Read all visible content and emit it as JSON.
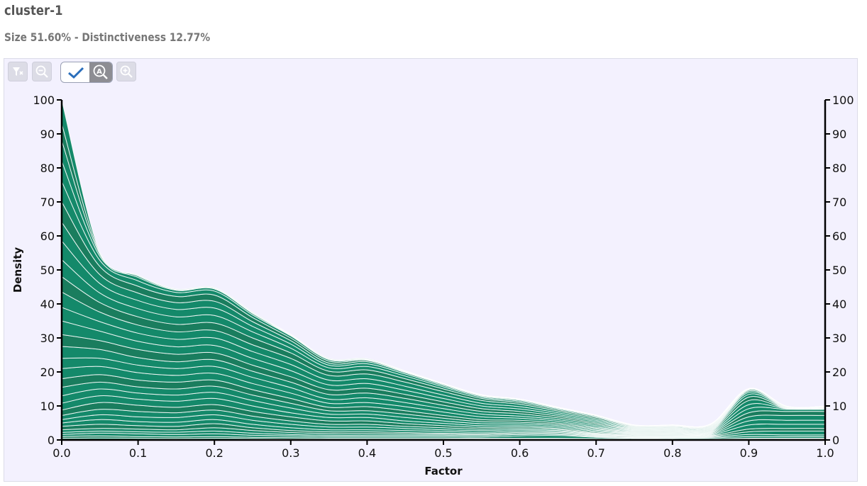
{
  "header": {
    "title": "cluster-1",
    "subtitle": "Size 51.60% - Distinctiveness 12.77%"
  },
  "toolbar": {
    "buttons": [
      {
        "icon": "filter-reset-icon",
        "enabled": false
      },
      {
        "icon": "zoom-out-icon",
        "enabled": false
      },
      {
        "icon": "auto-zoom-toggle-icon",
        "checked": true
      },
      {
        "icon": "zoom-in-icon",
        "enabled": false
      }
    ]
  },
  "colors": {
    "fill": "#14896a",
    "fill_dark": "#1a7d5e",
    "stroke": "#ffffff",
    "panel_bg": "#f3f1fe"
  },
  "chart_data": {
    "type": "area",
    "subtype": "stacked-density",
    "xlabel": "Factor",
    "ylabel": "Density",
    "xlim": [
      0,
      1
    ],
    "ylim": [
      0,
      100
    ],
    "x_ticks": [
      "0.0",
      "0.1",
      "0.2",
      "0.3",
      "0.4",
      "0.5",
      "0.6",
      "0.7",
      "0.8",
      "0.9",
      "1.0"
    ],
    "y_ticks": [
      "0",
      "10",
      "20",
      "30",
      "40",
      "50",
      "60",
      "70",
      "80",
      "90",
      "100"
    ],
    "y_right_ticks": [
      "0",
      "10",
      "20",
      "30",
      "40",
      "50",
      "60",
      "70",
      "80",
      "90",
      "100"
    ],
    "x": [
      0,
      0.05,
      0.1,
      0.15,
      0.2,
      0.25,
      0.3,
      0.35,
      0.4,
      0.45,
      0.5,
      0.55,
      0.6,
      0.65,
      0.7,
      0.75,
      0.8,
      0.85,
      0.9,
      0.95,
      1.0
    ],
    "boundaries": [
      [
        0,
        0,
        0,
        0,
        0,
        0,
        0,
        0,
        0,
        0,
        0,
        0,
        0,
        0,
        0,
        0,
        0,
        0,
        0,
        0,
        0
      ],
      [
        0.5,
        0.6,
        0.5,
        0.4,
        0.5,
        0.4,
        0.3,
        0.3,
        0.3,
        0.3,
        0.3,
        0.3,
        0.3,
        0.3,
        0.2,
        0.2,
        0.2,
        0.2,
        0.3,
        0.3,
        0.3
      ],
      [
        1.0,
        1.2,
        1.0,
        0.9,
        1.0,
        0.8,
        0.7,
        0.6,
        0.6,
        0.6,
        0.6,
        0.5,
        0.5,
        0.5,
        0.4,
        0.3,
        0.3,
        0.3,
        0.5,
        0.5,
        0.5
      ],
      [
        1.6,
        2.0,
        1.8,
        1.6,
        1.8,
        1.4,
        1.2,
        1.0,
        1.0,
        1.0,
        1.0,
        0.9,
        1.2,
        1.3,
        0.8,
        0.5,
        0.5,
        0.6,
        1.0,
        1.0,
        1.0
      ],
      [
        2.2,
        2.6,
        2.4,
        2.3,
        2.6,
        2.0,
        1.6,
        1.4,
        1.4,
        1.4,
        1.4,
        1.3,
        1.6,
        1.6,
        1.0,
        0.7,
        0.7,
        0.8,
        1.6,
        1.5,
        1.5
      ],
      [
        3.0,
        3.4,
        3.2,
        3.0,
        3.6,
        2.8,
        2.2,
        1.9,
        1.9,
        1.8,
        1.7,
        1.6,
        1.9,
        1.9,
        1.2,
        0.8,
        0.9,
        1.0,
        2.4,
        2.6,
        2.6
      ],
      [
        4.0,
        4.6,
        4.2,
        4.0,
        4.8,
        3.6,
        2.8,
        2.4,
        2.4,
        2.2,
        2.0,
        1.9,
        2.2,
        2.2,
        1.4,
        1.0,
        1.0,
        1.2,
        3.2,
        3.4,
        3.4
      ],
      [
        5.0,
        6.0,
        5.4,
        5.2,
        6.0,
        4.6,
        3.6,
        3.0,
        3.0,
        2.8,
        2.5,
        2.3,
        2.6,
        2.5,
        1.6,
        1.1,
        1.1,
        1.4,
        4.4,
        4.6,
        4.6
      ],
      [
        6.0,
        7.4,
        6.8,
        6.6,
        7.4,
        5.8,
        4.6,
        3.8,
        3.8,
        3.4,
        3.0,
        2.8,
        3.0,
        2.8,
        1.8,
        1.3,
        1.3,
        1.6,
        5.6,
        5.8,
        5.8
      ],
      [
        7.2,
        9.0,
        8.4,
        8.0,
        8.8,
        7.0,
        5.6,
        4.6,
        4.6,
        4.0,
        3.6,
        3.2,
        3.4,
        3.1,
        2.0,
        1.5,
        1.5,
        1.8,
        6.8,
        7.2,
        7.2
      ],
      [
        8.8,
        11.0,
        10.2,
        9.6,
        10.4,
        8.4,
        6.8,
        5.6,
        5.6,
        4.8,
        4.2,
        3.7,
        3.8,
        3.4,
        2.3,
        1.7,
        1.7,
        2.0,
        8.0,
        8.4,
        8.4
      ],
      [
        10.8,
        13.0,
        12.0,
        11.4,
        12.2,
        10.0,
        8.0,
        6.6,
        6.6,
        5.6,
        4.9,
        4.2,
        4.2,
        3.8,
        2.6,
        1.9,
        1.9,
        2.2,
        9.2,
        9.0,
        9.0
      ],
      [
        13.0,
        15.0,
        13.8,
        13.2,
        14.0,
        11.6,
        9.4,
        7.6,
        7.6,
        6.6,
        5.6,
        4.8,
        4.7,
        4.2,
        2.9,
        2.1,
        2.1,
        2.4,
        10.4,
        9.2,
        9.2
      ],
      [
        15.5,
        17.0,
        15.6,
        15.0,
        15.8,
        13.2,
        10.8,
        8.6,
        8.6,
        7.6,
        6.4,
        5.4,
        5.2,
        4.6,
        3.2,
        2.3,
        2.3,
        2.6,
        11.6,
        9.3,
        9.3
      ],
      [
        18.0,
        19.2,
        17.6,
        17.0,
        17.6,
        14.8,
        12.2,
        9.6,
        9.8,
        8.6,
        7.2,
        6.0,
        5.8,
        5.0,
        3.5,
        2.5,
        2.5,
        2.8,
        12.6,
        9.4,
        9.4
      ],
      [
        21.0,
        21.6,
        19.8,
        19.0,
        19.6,
        16.6,
        13.8,
        10.8,
        11.0,
        9.8,
        8.2,
        6.8,
        6.4,
        5.5,
        3.8,
        2.7,
        2.7,
        3.0,
        13.4,
        9.5,
        9.5
      ],
      [
        24.0,
        24.0,
        22.0,
        21.0,
        21.6,
        18.4,
        15.4,
        12.0,
        12.4,
        11.0,
        9.2,
        7.6,
        7.0,
        6.0,
        4.2,
        2.9,
        2.9,
        3.2,
        14.0,
        9.6,
        9.6
      ],
      [
        27.5,
        26.6,
        24.2,
        23.0,
        23.6,
        20.2,
        17.0,
        13.4,
        13.8,
        12.2,
        10.2,
        8.4,
        7.7,
        6.5,
        4.6,
        3.1,
        3.1,
        3.4,
        14.4,
        9.7,
        9.7
      ],
      [
        31.0,
        29.2,
        26.6,
        25.2,
        25.6,
        22.0,
        18.6,
        14.8,
        15.2,
        13.4,
        11.2,
        9.2,
        8.4,
        7.0,
        5.0,
        3.3,
        3.3,
        3.6,
        14.7,
        9.8,
        9.8
      ],
      [
        35.0,
        32.0,
        29.0,
        27.4,
        27.8,
        24.0,
        20.4,
        16.2,
        16.6,
        14.6,
        12.2,
        10.0,
        9.1,
        7.5,
        5.4,
        3.5,
        3.5,
        3.8,
        14.9,
        9.9,
        9.9
      ],
      [
        39.0,
        34.8,
        31.4,
        29.6,
        30.0,
        26.0,
        22.2,
        17.6,
        18.0,
        15.8,
        13.2,
        10.8,
        9.8,
        8.0,
        5.8,
        3.7,
        3.7,
        4.0,
        15.0,
        9.9,
        9.9
      ],
      [
        43.5,
        37.6,
        33.8,
        31.8,
        32.2,
        28.0,
        24.0,
        19.0,
        19.4,
        17.0,
        14.2,
        11.6,
        10.5,
        8.5,
        6.2,
        3.9,
        3.9,
        4.2,
        15.1,
        9.9,
        9.9
      ],
      [
        48.0,
        40.4,
        36.2,
        34.0,
        34.4,
        30.0,
        25.6,
        20.2,
        20.6,
        18.0,
        15.0,
        12.2,
        11.0,
        8.9,
        6.6,
        4.1,
        4.1,
        4.4,
        15.1,
        9.9,
        9.9
      ],
      [
        53.0,
        43.2,
        38.6,
        36.2,
        36.6,
        31.8,
        27.0,
        21.2,
        21.6,
        18.8,
        15.6,
        12.6,
        11.4,
        9.2,
        6.9,
        4.2,
        4.2,
        4.5,
        15.1,
        9.9,
        9.9
      ],
      [
        58.5,
        46.0,
        41.0,
        38.4,
        38.8,
        33.4,
        28.2,
        22.0,
        22.4,
        19.4,
        16.0,
        12.9,
        11.7,
        9.4,
        7.1,
        4.3,
        4.3,
        4.6,
        15.1,
        9.9,
        9.9
      ],
      [
        64.0,
        48.6,
        43.2,
        40.4,
        40.8,
        34.8,
        29.2,
        22.6,
        23.0,
        19.8,
        16.3,
        13.1,
        11.9,
        9.5,
        7.2,
        4.4,
        4.4,
        4.7,
        15.1,
        9.9,
        9.9
      ],
      [
        70.0,
        51.0,
        45.2,
        42.2,
        42.6,
        36.0,
        30.0,
        23.2,
        23.4,
        20.0,
        16.4,
        13.2,
        12.0,
        9.6,
        7.3,
        4.4,
        4.4,
        4.7,
        15.1,
        9.9,
        9.9
      ],
      [
        76.0,
        52.8,
        46.8,
        43.4,
        43.8,
        36.8,
        30.6,
        23.6,
        23.6,
        20.1,
        16.5,
        13.2,
        12.0,
        9.6,
        7.3,
        4.4,
        4.4,
        4.7,
        15.1,
        9.9,
        9.9
      ],
      [
        82.0,
        54.0,
        47.8,
        44.0,
        44.4,
        37.2,
        30.8,
        23.8,
        23.7,
        20.2,
        16.5,
        13.3,
        12.0,
        9.6,
        7.3,
        4.4,
        4.4,
        4.7,
        15.1,
        9.9,
        9.9
      ],
      [
        88.0,
        54.6,
        48.2,
        44.2,
        44.6,
        37.4,
        30.9,
        23.9,
        23.8,
        20.2,
        16.6,
        13.3,
        12.0,
        9.6,
        7.3,
        4.4,
        4.4,
        4.7,
        15.1,
        9.9,
        9.9
      ],
      [
        93.0,
        55.0,
        48.4,
        44.3,
        44.7,
        37.5,
        31.0,
        23.9,
        23.8,
        20.3,
        16.6,
        13.3,
        12.0,
        9.6,
        7.3,
        4.4,
        4.4,
        4.7,
        15.1,
        9.9,
        9.9
      ],
      [
        100.0,
        55.2,
        48.5,
        44.4,
        44.8,
        37.6,
        31.0,
        24.0,
        23.9,
        20.3,
        16.6,
        13.3,
        12.0,
        9.6,
        7.3,
        4.4,
        4.4,
        4.7,
        15.1,
        9.9,
        9.9
      ]
    ]
  }
}
